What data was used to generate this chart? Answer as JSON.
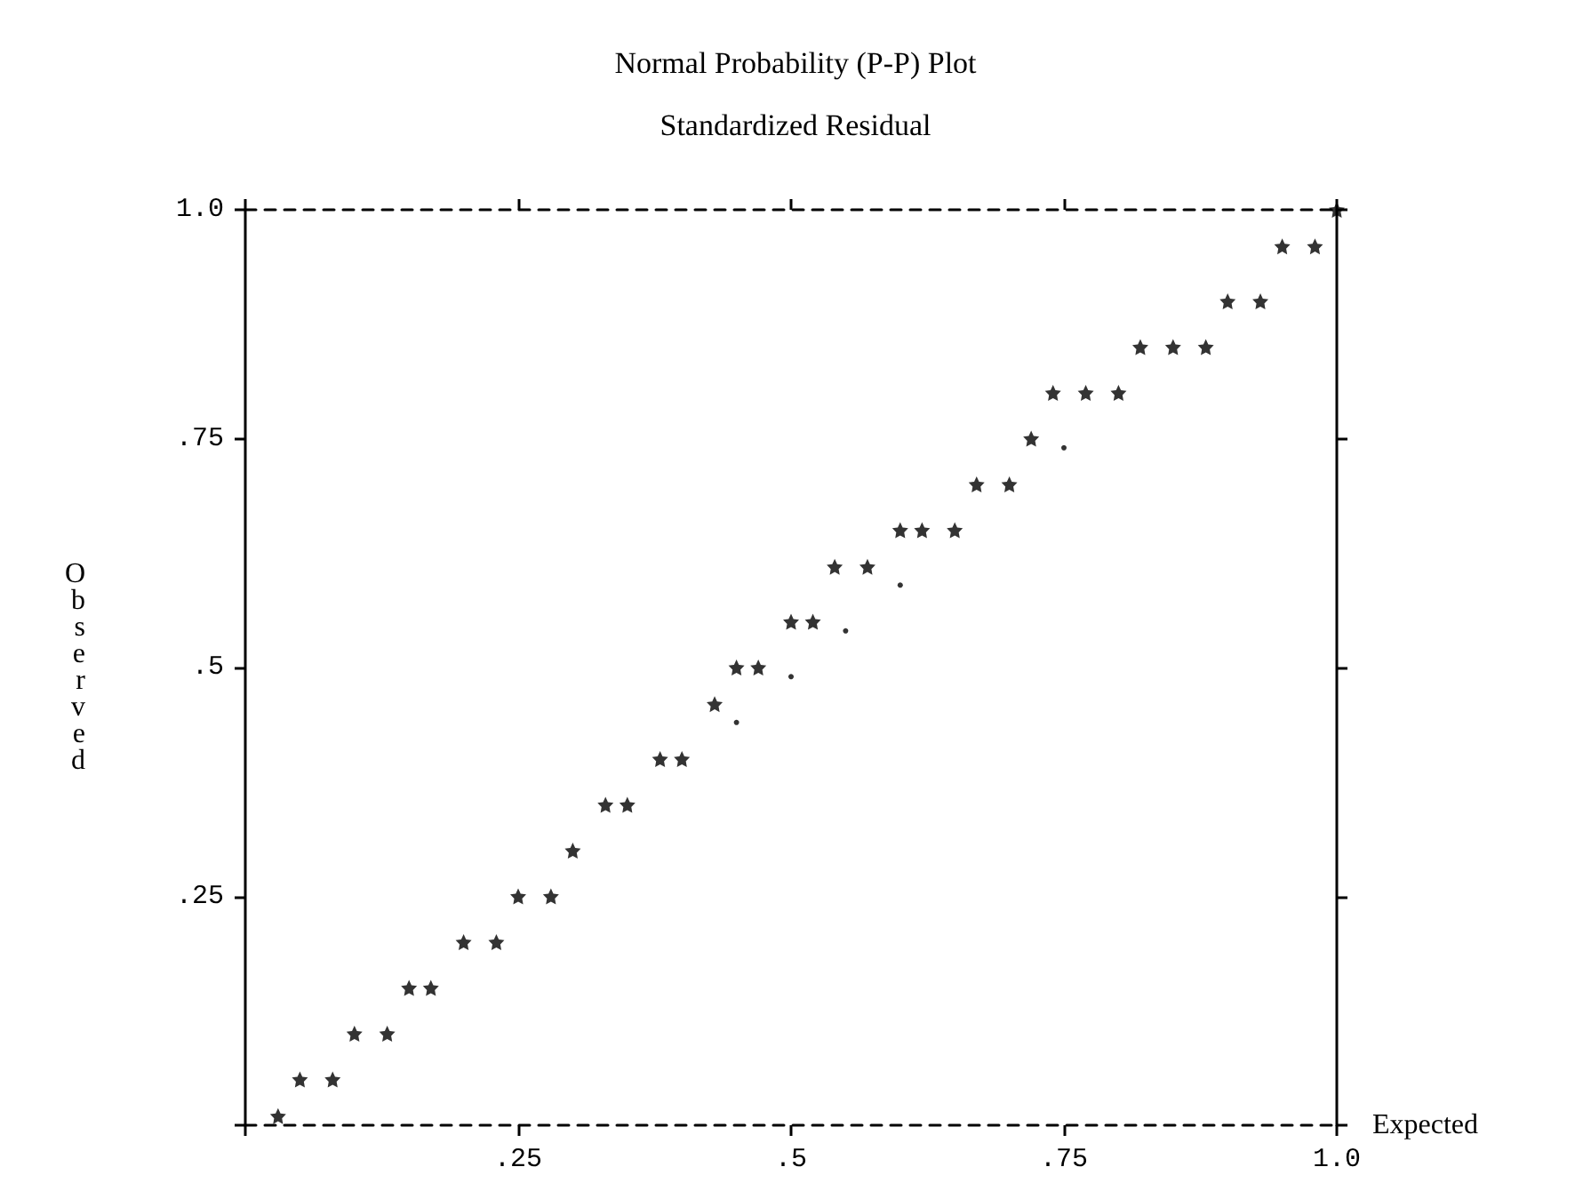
{
  "chart_data": {
    "type": "scatter",
    "title": "Normal Probability (P-P) Plot",
    "subtitle": "Standardized Residual",
    "xlabel": "Expected",
    "ylabel": "Observed",
    "marker": "star",
    "grid": false,
    "xlim": [
      0,
      1
    ],
    "ylim": [
      0,
      1
    ],
    "xticks": [
      {
        "value": 0,
        "label": null
      },
      {
        "value": 0.25,
        "label": ".25"
      },
      {
        "value": 0.5,
        "label": ".5"
      },
      {
        "value": 0.75,
        "label": ".75"
      },
      {
        "value": 1,
        "label": "1.0"
      }
    ],
    "yticks": [
      {
        "value": 0,
        "label": null
      },
      {
        "value": 0.25,
        "label": ".25"
      },
      {
        "value": 0.5,
        "label": ".5"
      },
      {
        "value": 0.75,
        "label": ".75"
      },
      {
        "value": 1,
        "label": "1.0"
      }
    ],
    "series": [
      {
        "color": "#000000",
        "x": [
          0.03,
          0.05,
          0.08,
          0.1,
          0.13,
          0.15,
          0.17,
          0.2,
          0.23,
          0.25,
          0.28,
          0.3,
          0.33,
          0.35,
          0.38,
          0.4,
          0.43,
          0.45,
          0.47,
          0.5,
          0.52,
          0.54,
          0.57,
          0.6,
          0.62,
          0.65,
          0.67,
          0.7,
          0.72,
          0.74,
          0.77,
          0.8,
          0.82,
          0.85,
          0.88,
          0.9,
          0.93,
          0.95,
          0.98,
          1.0
        ],
        "values": [
          0.01,
          0.05,
          0.05,
          0.1,
          0.1,
          0.15,
          0.15,
          0.2,
          0.2,
          0.25,
          0.25,
          0.3,
          0.35,
          0.35,
          0.4,
          0.4,
          0.46,
          0.5,
          0.5,
          0.55,
          0.55,
          0.61,
          0.61,
          0.65,
          0.65,
          0.65,
          0.7,
          0.7,
          0.75,
          0.8,
          0.8,
          0.8,
          0.85,
          0.85,
          0.85,
          0.9,
          0.9,
          0.96,
          0.96,
          1.0
        ]
      },
      {
        "color": "#000000",
        "marker": "circle",
        "x": [
          0.45,
          0.5,
          0.55,
          0.6,
          0.75
        ],
        "values": [
          0.44,
          0.49,
          0.54,
          0.59,
          0.74
        ]
      }
    ]
  }
}
